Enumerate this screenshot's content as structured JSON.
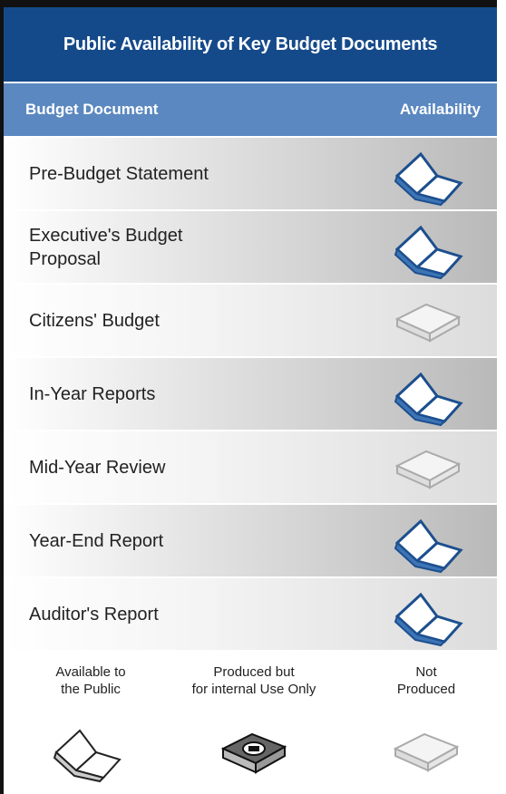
{
  "title": "Public Availability of Key Budget Documents",
  "header": {
    "columns": [
      "Budget Document",
      "Availability"
    ]
  },
  "rows": [
    {
      "document": [
        "Pre-Budget Statement"
      ]
    },
    {
      "document": [
        "Executive's Budget",
        "Proposal"
      ]
    },
    {
      "document": [
        "Citizens' Budget"
      ]
    },
    {
      "document": [
        "In-Year Reports"
      ]
    },
    {
      "document": [
        "Mid-Year Review"
      ]
    },
    {
      "document": [
        "Year-End Report"
      ]
    },
    {
      "document": [
        "Auditor's Report"
      ]
    }
  ],
  "legend": [
    {
      "label": [
        "Available to",
        "the Public"
      ]
    },
    {
      "label": [
        "Produced but",
        "for internal Use Only"
      ]
    },
    {
      "label": [
        "Not",
        "Produced"
      ]
    }
  ]
}
